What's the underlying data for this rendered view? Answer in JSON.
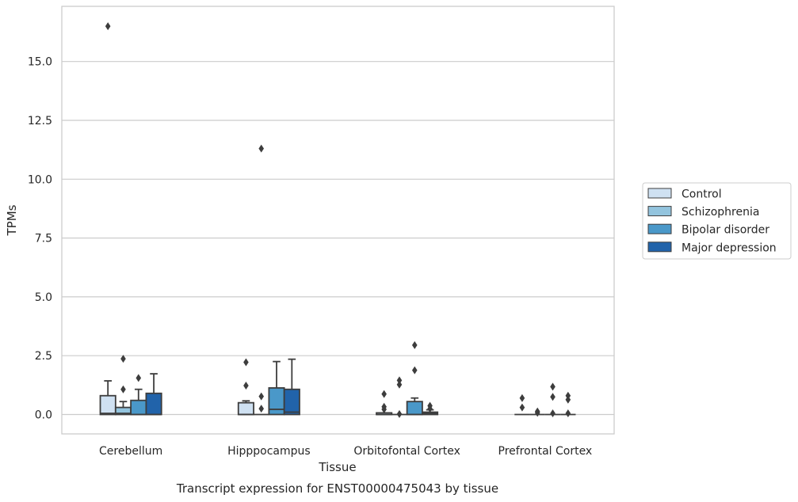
{
  "caption": "Transcript expression for ENST00000475043 by tissue",
  "chart_data": {
    "type": "box",
    "xlabel": "Tissue",
    "ylabel": "TPMs",
    "ylim": [
      -0.8,
      17.7
    ],
    "yticks": [
      0.0,
      2.5,
      5.0,
      7.5,
      10.0,
      12.5,
      15.0
    ],
    "ytick_labels": [
      "0.0",
      "2.5",
      "5.0",
      "7.5",
      "10.0",
      "12.5",
      "15.0"
    ],
    "grid": "horizontal",
    "legend_position": "right",
    "categories": [
      "Cerebellum",
      "Hipppocampus",
      "Orbitofontal Cortex",
      "Prefrontal Cortex"
    ],
    "series": [
      {
        "name": "Control",
        "color": "#cfe1f2",
        "boxes": [
          {
            "q1": 0.0,
            "median": 0.05,
            "q3": 0.8,
            "whisker_low": 0.0,
            "whisker_high": 1.43,
            "outliers": [
              16.5
            ]
          },
          {
            "q1": 0.0,
            "median": 0.0,
            "q3": 0.5,
            "whisker_low": 0.0,
            "whisker_high": 0.58,
            "outliers": [
              2.22,
              1.23
            ]
          },
          {
            "q1": 0.0,
            "median": 0.0,
            "q3": 0.07,
            "whisker_low": 0.0,
            "whisker_high": 0.07,
            "outliers": [
              0.87,
              0.33,
              0.22
            ]
          },
          {
            "q1": 0.0,
            "median": 0.0,
            "q3": 0.0,
            "whisker_low": 0.0,
            "whisker_high": 0.0,
            "outliers": [
              0.7,
              0.3
            ]
          }
        ]
      },
      {
        "name": "Schizophrenia",
        "color": "#93c4de",
        "boxes": [
          {
            "q1": 0.0,
            "median": 0.05,
            "q3": 0.3,
            "whisker_low": 0.0,
            "whisker_high": 0.55,
            "outliers": [
              2.37,
              1.07
            ]
          },
          {
            "q1": 0.0,
            "median": 0.0,
            "q3": 0.0,
            "whisker_low": 0.0,
            "whisker_high": 0.0,
            "outliers": [
              11.3,
              0.77,
              0.25
            ]
          },
          {
            "q1": 0.0,
            "median": 0.0,
            "q3": 0.0,
            "whisker_low": 0.0,
            "whisker_high": 0.0,
            "outliers": [
              1.45,
              1.27,
              0.02
            ]
          },
          {
            "q1": 0.0,
            "median": 0.0,
            "q3": 0.0,
            "whisker_low": 0.0,
            "whisker_high": 0.0,
            "outliers": [
              0.13,
              0.07
            ]
          }
        ]
      },
      {
        "name": "Bipolar disorder",
        "color": "#4a98c9",
        "boxes": [
          {
            "q1": 0.0,
            "median": 0.0,
            "q3": 0.6,
            "whisker_low": 0.0,
            "whisker_high": 1.07,
            "outliers": [
              1.55
            ]
          },
          {
            "q1": 0.0,
            "median": 0.22,
            "q3": 1.13,
            "whisker_low": 0.0,
            "whisker_high": 2.25,
            "outliers": []
          },
          {
            "q1": 0.0,
            "median": 0.0,
            "q3": 0.55,
            "whisker_low": 0.0,
            "whisker_high": 0.7,
            "outliers": [
              2.95,
              1.88
            ]
          },
          {
            "q1": 0.0,
            "median": 0.0,
            "q3": 0.0,
            "whisker_low": 0.0,
            "whisker_high": 0.0,
            "outliers": [
              1.18,
              0.75,
              0.05
            ]
          }
        ]
      },
      {
        "name": "Major depression",
        "color": "#2163aa",
        "boxes": [
          {
            "q1": 0.0,
            "median": 0.0,
            "q3": 0.9,
            "whisker_low": 0.0,
            "whisker_high": 1.73,
            "outliers": []
          },
          {
            "q1": 0.0,
            "median": 0.1,
            "q3": 1.07,
            "whisker_low": 0.0,
            "whisker_high": 2.35,
            "outliers": []
          },
          {
            "q1": 0.0,
            "median": 0.05,
            "q3": 0.1,
            "whisker_low": 0.0,
            "whisker_high": 0.2,
            "outliers": [
              0.37,
              0.25
            ]
          },
          {
            "q1": 0.0,
            "median": 0.0,
            "q3": 0.0,
            "whisker_low": 0.0,
            "whisker_high": 0.0,
            "outliers": [
              0.8,
              0.63,
              0.05
            ]
          }
        ]
      }
    ]
  }
}
